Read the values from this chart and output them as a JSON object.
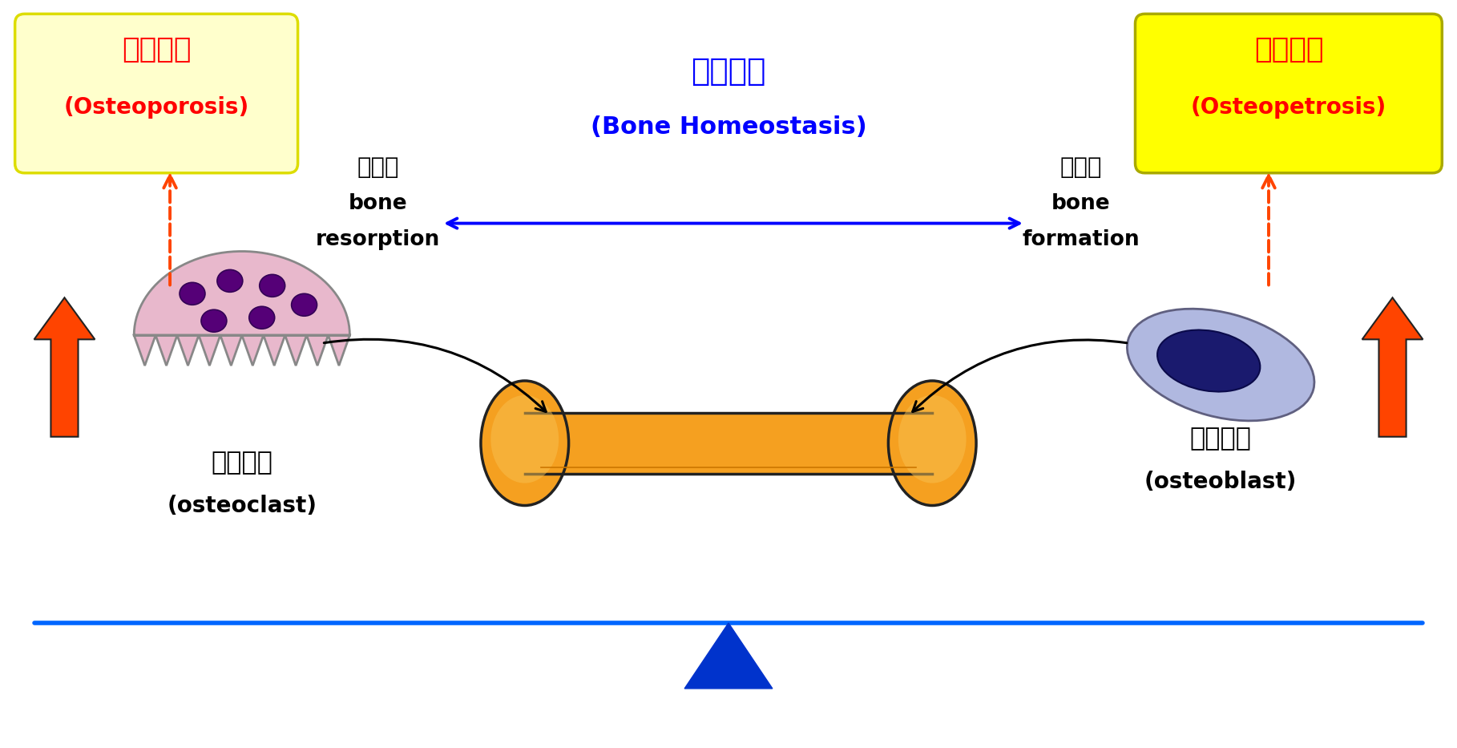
{
  "fig_width": 18.18,
  "fig_height": 9.33,
  "bg_color": "#ffffff",
  "title_homeostasis_korean": "골항상성",
  "title_homeostasis_english": "(Bone Homeostasis)",
  "title_homeostasis_color": "#0000ff",
  "left_box_korean": "골다공증",
  "left_box_english": "(Osteoporosis)",
  "left_box_bg": "#ffffcc",
  "right_box_korean": "골경화증",
  "right_box_english": "(Osteopetrosis)",
  "right_box_bg": "#ffff00",
  "box_text_color": "#ff0000",
  "left_label_korean": "골흡수",
  "left_label_line1": "bone",
  "left_label_line2": "resorption",
  "right_label_korean": "골형성",
  "right_label_line1": "bone",
  "right_label_line2": "formation",
  "label_color": "#000000",
  "left_cell_korean": "파골세포",
  "left_cell_english": "(osteoclast)",
  "right_cell_korean": "조골세포",
  "right_cell_english": "(osteoblast)",
  "cell_label_color": "#000000",
  "arrow_color_blue": "#0000ff",
  "arrow_color_red": "#ff4400",
  "arrow_color_black": "#000000",
  "balance_line_color": "#0066ff",
  "triangle_color": "#0033cc",
  "osteoclast_body_color": "#e8b8cc",
  "osteoclast_edge_color": "#888888",
  "osteoclast_blob_color": "#550077",
  "osteoclast_blob_edge": "#330055",
  "osteoblast_body_color": "#b0b8e0",
  "osteoblast_edge_color": "#606080",
  "osteoblast_nucleus_color": "#1a1a6e",
  "bone_fill_color": "#f5a020",
  "bone_edge_color": "#222222"
}
